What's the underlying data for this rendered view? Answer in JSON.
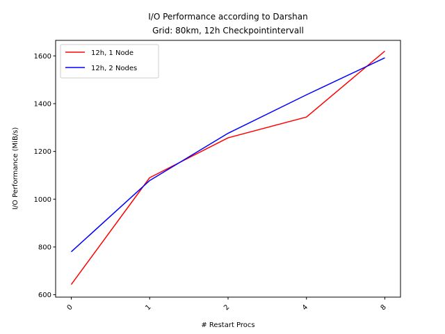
{
  "chart_data": {
    "type": "line",
    "title_lines": [
      "I/O Performance according to Darshan",
      "Grid: 80km, 12h Checkpointintervall"
    ],
    "xlabel": "# Restart Procs",
    "ylabel": "I/O Performance (MiB/s)",
    "categories": [
      "0",
      "1",
      "2",
      "4",
      "8"
    ],
    "ylim": [
      590,
      1665
    ],
    "yticks": [
      600,
      800,
      1000,
      1200,
      1400,
      1600
    ],
    "grid": false,
    "legend_position": "upper-left",
    "series": [
      {
        "name": "12h, 1 Node",
        "color": "#ff0000",
        "values": [
          643,
          1090,
          1257,
          1344,
          1620
        ]
      },
      {
        "name": "12h, 2 Nodes",
        "color": "#0000ff",
        "values": [
          780,
          1078,
          1276,
          1437,
          1592
        ]
      }
    ]
  }
}
